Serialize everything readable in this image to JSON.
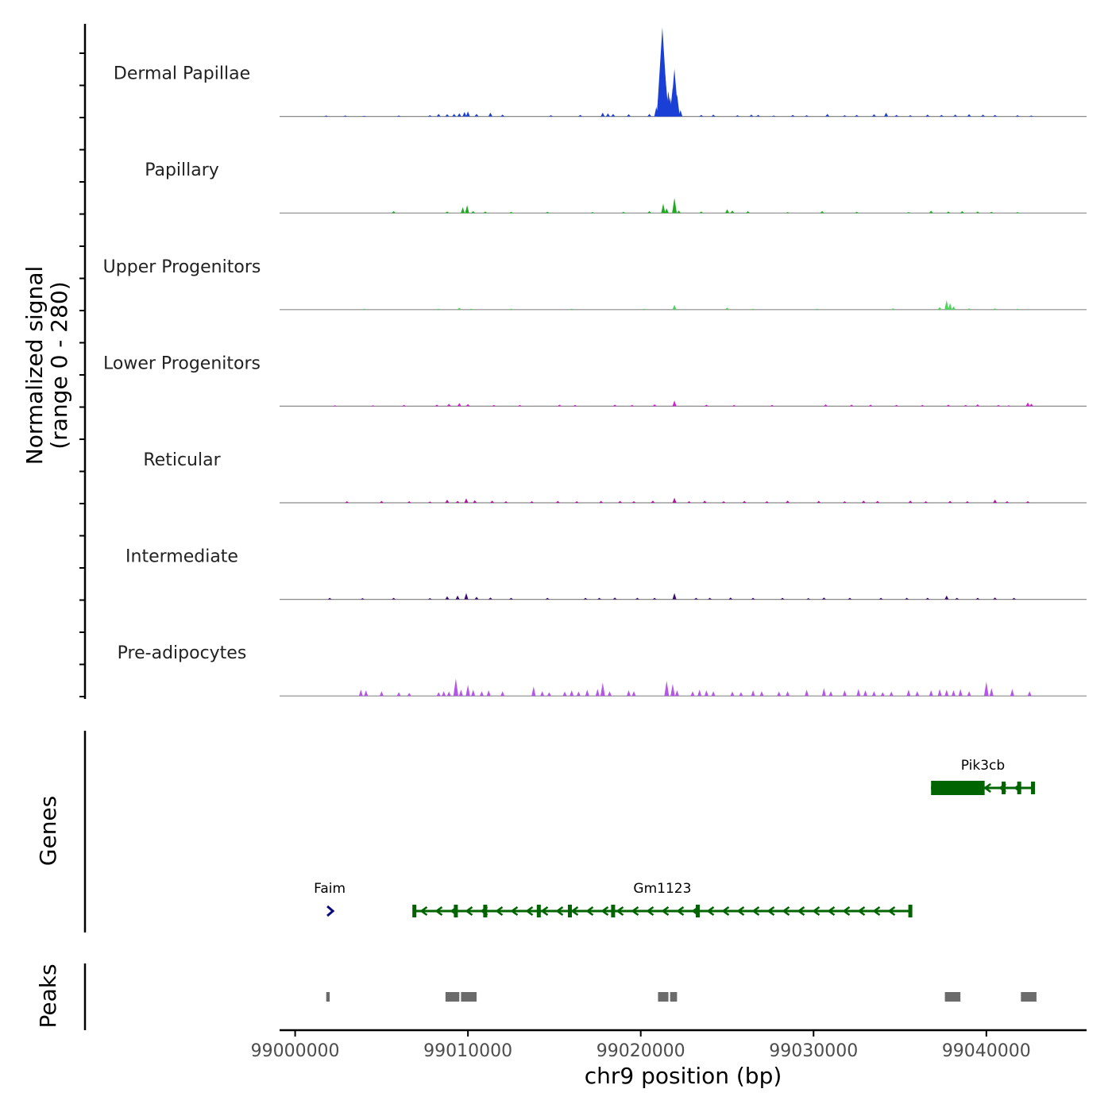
{
  "chart_data": {
    "type": "area",
    "title": "",
    "xlabel": "chr9 position (bp)",
    "ylabel": "Normalized signal\n(range 0 - 280)",
    "ylim": [
      0,
      280
    ],
    "xlim": [
      98999100,
      99045800
    ],
    "x_ticks": [
      99000000,
      99010000,
      99020000,
      99030000,
      99040000
    ],
    "x_tick_labels": [
      "99000000",
      "99010000",
      "99020000",
      "99030000",
      "99040000"
    ],
    "colors": {
      "Dermal Papillae": "#1a3fd6",
      "Papillary": "#1faa1f",
      "Upper Progenitors": "#4cd65a",
      "Lower Progenitors": "#d41fd4",
      "Reticular": "#b0139d",
      "Intermediate": "#3d0a70",
      "Pre-adipocytes": "#b656e8",
      "genes": "#006400",
      "gene_faim": "#0a0a80",
      "peaks": "#6b6b6b"
    },
    "series": [
      {
        "name": "Dermal Papillae",
        "peaks": [
          [
            99001800,
            3
          ],
          [
            99002900,
            3
          ],
          [
            99004000,
            2
          ],
          [
            99006000,
            3
          ],
          [
            99007800,
            4
          ],
          [
            99008300,
            8
          ],
          [
            99008800,
            7
          ],
          [
            99009200,
            8
          ],
          [
            99009500,
            10
          ],
          [
            99009800,
            14
          ],
          [
            99010000,
            16
          ],
          [
            99010500,
            8
          ],
          [
            99011300,
            12
          ],
          [
            99012000,
            6
          ],
          [
            99014800,
            4
          ],
          [
            99016500,
            5
          ],
          [
            99017800,
            12
          ],
          [
            99018100,
            10
          ],
          [
            99018400,
            8
          ],
          [
            99019300,
            7
          ],
          [
            99020500,
            8
          ],
          [
            99020900,
            30
          ],
          [
            99021050,
            60
          ],
          [
            99021150,
            150
          ],
          [
            99021250,
            280
          ],
          [
            99021400,
            140
          ],
          [
            99021600,
            80
          ],
          [
            99021700,
            60
          ],
          [
            99021850,
            90
          ],
          [
            99021950,
            150
          ],
          [
            99022100,
            70
          ],
          [
            99022300,
            20
          ],
          [
            99023500,
            5
          ],
          [
            99024200,
            6
          ],
          [
            99025600,
            4
          ],
          [
            99026400,
            6
          ],
          [
            99026800,
            5
          ],
          [
            99027700,
            3
          ],
          [
            99028800,
            5
          ],
          [
            99029600,
            4
          ],
          [
            99030800,
            8
          ],
          [
            99031800,
            4
          ],
          [
            99032500,
            5
          ],
          [
            99033500,
            7
          ],
          [
            99034200,
            12
          ],
          [
            99034800,
            5
          ],
          [
            99035600,
            4
          ],
          [
            99036600,
            6
          ],
          [
            99037400,
            5
          ],
          [
            99038200,
            6
          ],
          [
            99039000,
            7
          ],
          [
            99039800,
            6
          ],
          [
            99040500,
            5
          ],
          [
            99041800,
            4
          ],
          [
            99042600,
            3
          ]
        ]
      },
      {
        "name": "Papillary",
        "peaks": [
          [
            99005700,
            6
          ],
          [
            99008800,
            5
          ],
          [
            99009700,
            18
          ],
          [
            99009950,
            25
          ],
          [
            99010300,
            6
          ],
          [
            99011000,
            5
          ],
          [
            99012500,
            4
          ],
          [
            99014600,
            4
          ],
          [
            99017200,
            3
          ],
          [
            99019000,
            4
          ],
          [
            99020500,
            6
          ],
          [
            99021300,
            30
          ],
          [
            99021500,
            15
          ],
          [
            99021950,
            48
          ],
          [
            99022200,
            8
          ],
          [
            99023500,
            5
          ],
          [
            99025000,
            12
          ],
          [
            99025300,
            8
          ],
          [
            99026200,
            6
          ],
          [
            99028500,
            3
          ],
          [
            99030500,
            6
          ],
          [
            99032500,
            4
          ],
          [
            99035500,
            3
          ],
          [
            99036800,
            7
          ],
          [
            99037800,
            5
          ],
          [
            99038600,
            6
          ],
          [
            99039500,
            5
          ],
          [
            99040300,
            4
          ],
          [
            99041800,
            3
          ]
        ]
      },
      {
        "name": "Upper Progenitors",
        "peaks": [
          [
            99004000,
            3
          ],
          [
            99008300,
            3
          ],
          [
            99009500,
            6
          ],
          [
            99010200,
            3
          ],
          [
            99012500,
            3
          ],
          [
            99016000,
            3
          ],
          [
            99020200,
            3
          ],
          [
            99021950,
            15
          ],
          [
            99025000,
            6
          ],
          [
            99026500,
            3
          ],
          [
            99030200,
            3
          ],
          [
            99034600,
            4
          ],
          [
            99037300,
            8
          ],
          [
            99037700,
            30
          ],
          [
            99037900,
            20
          ],
          [
            99038100,
            10
          ],
          [
            99039000,
            4
          ],
          [
            99040500,
            4
          ],
          [
            99041800,
            3
          ]
        ]
      },
      {
        "name": "Lower Progenitors",
        "peaks": [
          [
            99002300,
            3
          ],
          [
            99004500,
            3
          ],
          [
            99006300,
            4
          ],
          [
            99008200,
            5
          ],
          [
            99008900,
            8
          ],
          [
            99009500,
            10
          ],
          [
            99010000,
            7
          ],
          [
            99011500,
            4
          ],
          [
            99013000,
            4
          ],
          [
            99015300,
            5
          ],
          [
            99016200,
            4
          ],
          [
            99018500,
            5
          ],
          [
            99019500,
            4
          ],
          [
            99020800,
            6
          ],
          [
            99021950,
            18
          ],
          [
            99023800,
            5
          ],
          [
            99025400,
            4
          ],
          [
            99027600,
            4
          ],
          [
            99030700,
            6
          ],
          [
            99032200,
            5
          ],
          [
            99033300,
            5
          ],
          [
            99034800,
            4
          ],
          [
            99036300,
            4
          ],
          [
            99037800,
            5
          ],
          [
            99038800,
            4
          ],
          [
            99039500,
            6
          ],
          [
            99040700,
            4
          ],
          [
            99041300,
            3
          ],
          [
            99042400,
            12
          ],
          [
            99042600,
            8
          ]
        ]
      },
      {
        "name": "Reticular",
        "peaks": [
          [
            99003000,
            5
          ],
          [
            99005000,
            6
          ],
          [
            99006600,
            5
          ],
          [
            99007800,
            4
          ],
          [
            99008800,
            10
          ],
          [
            99009400,
            6
          ],
          [
            99009900,
            14
          ],
          [
            99010400,
            8
          ],
          [
            99011400,
            7
          ],
          [
            99012200,
            5
          ],
          [
            99013700,
            5
          ],
          [
            99015200,
            6
          ],
          [
            99016300,
            5
          ],
          [
            99017700,
            6
          ],
          [
            99018800,
            6
          ],
          [
            99019600,
            5
          ],
          [
            99020700,
            7
          ],
          [
            99021950,
            16
          ],
          [
            99022800,
            5
          ],
          [
            99023700,
            7
          ],
          [
            99024800,
            5
          ],
          [
            99026000,
            6
          ],
          [
            99027300,
            5
          ],
          [
            99028500,
            7
          ],
          [
            99030300,
            6
          ],
          [
            99031800,
            5
          ],
          [
            99032900,
            7
          ],
          [
            99033700,
            6
          ],
          [
            99035600,
            7
          ],
          [
            99036500,
            5
          ],
          [
            99037900,
            6
          ],
          [
            99038900,
            5
          ],
          [
            99040500,
            10
          ],
          [
            99041200,
            5
          ],
          [
            99042400,
            5
          ]
        ]
      },
      {
        "name": "Intermediate",
        "peaks": [
          [
            99002000,
            5
          ],
          [
            99003900,
            4
          ],
          [
            99005700,
            5
          ],
          [
            99007800,
            4
          ],
          [
            99008800,
            10
          ],
          [
            99009400,
            12
          ],
          [
            99009900,
            20
          ],
          [
            99010500,
            8
          ],
          [
            99011300,
            6
          ],
          [
            99012500,
            5
          ],
          [
            99014600,
            5
          ],
          [
            99016800,
            5
          ],
          [
            99017600,
            5
          ],
          [
            99018500,
            6
          ],
          [
            99019800,
            5
          ],
          [
            99020800,
            5
          ],
          [
            99021950,
            20
          ],
          [
            99023200,
            5
          ],
          [
            99024000,
            5
          ],
          [
            99025200,
            6
          ],
          [
            99026500,
            5
          ],
          [
            99028200,
            5
          ],
          [
            99029700,
            4
          ],
          [
            99030600,
            6
          ],
          [
            99032100,
            5
          ],
          [
            99033900,
            5
          ],
          [
            99035400,
            5
          ],
          [
            99036600,
            5
          ],
          [
            99037700,
            12
          ],
          [
            99038300,
            5
          ],
          [
            99039500,
            5
          ],
          [
            99040500,
            6
          ],
          [
            99041600,
            5
          ]
        ]
      },
      {
        "name": "Pre-adipocytes",
        "peaks": [
          [
            99003800,
            20
          ],
          [
            99004100,
            18
          ],
          [
            99005000,
            15
          ],
          [
            99006000,
            12
          ],
          [
            99006600,
            10
          ],
          [
            99008300,
            12
          ],
          [
            99008600,
            15
          ],
          [
            99008900,
            14
          ],
          [
            99009300,
            55
          ],
          [
            99009600,
            20
          ],
          [
            99010000,
            35
          ],
          [
            99010300,
            20
          ],
          [
            99010800,
            15
          ],
          [
            99011200,
            18
          ],
          [
            99012000,
            15
          ],
          [
            99013800,
            30
          ],
          [
            99014300,
            15
          ],
          [
            99014700,
            12
          ],
          [
            99015600,
            14
          ],
          [
            99016000,
            18
          ],
          [
            99016400,
            14
          ],
          [
            99016900,
            20
          ],
          [
            99017500,
            22
          ],
          [
            99017800,
            42
          ],
          [
            99018200,
            15
          ],
          [
            99019300,
            18
          ],
          [
            99019600,
            15
          ],
          [
            99021500,
            48
          ],
          [
            99021850,
            38
          ],
          [
            99022100,
            18
          ],
          [
            99023000,
            15
          ],
          [
            99023400,
            20
          ],
          [
            99023800,
            18
          ],
          [
            99024200,
            15
          ],
          [
            99025300,
            14
          ],
          [
            99025800,
            12
          ],
          [
            99026500,
            18
          ],
          [
            99027000,
            15
          ],
          [
            99028000,
            14
          ],
          [
            99028500,
            15
          ],
          [
            99029600,
            20
          ],
          [
            99030600,
            25
          ],
          [
            99031000,
            15
          ],
          [
            99031800,
            18
          ],
          [
            99032600,
            22
          ],
          [
            99033000,
            18
          ],
          [
            99033500,
            15
          ],
          [
            99034000,
            12
          ],
          [
            99034500,
            14
          ],
          [
            99035500,
            20
          ],
          [
            99036000,
            15
          ],
          [
            99036800,
            18
          ],
          [
            99037300,
            22
          ],
          [
            99037700,
            20
          ],
          [
            99038100,
            18
          ],
          [
            99038500,
            22
          ],
          [
            99039000,
            15
          ],
          [
            99040000,
            45
          ],
          [
            99040300,
            25
          ],
          [
            99041500,
            22
          ],
          [
            99042500,
            15
          ]
        ]
      }
    ],
    "genes": [
      {
        "name": "Faim",
        "start": 99001900,
        "end": 99002100,
        "strand": "+",
        "row": 2,
        "exons": []
      },
      {
        "name": "Gm1123",
        "start": 99006800,
        "end": 99035700,
        "strand": "-",
        "row": 2,
        "exons": [
          99006900,
          99009300,
          99011000,
          99014100,
          99015900,
          99018400,
          99023300,
          99035600
        ]
      },
      {
        "name": "Pik3cb",
        "start": 99036800,
        "end": 99042800,
        "strand": "-",
        "row": 1,
        "exons": [
          99041000,
          99041900,
          99042700
        ],
        "thick": [
          [
            99036800,
            99039900
          ]
        ]
      }
    ],
    "peaks": [
      [
        99001800,
        99002000
      ],
      [
        99008700,
        99009500
      ],
      [
        99009600,
        99010500
      ],
      [
        99021000,
        99021600
      ],
      [
        99021700,
        99022100
      ],
      [
        99037600,
        99038500
      ],
      [
        99042000,
        99042900
      ]
    ],
    "panel_labels": {
      "genes": "Genes",
      "peaks": "Peaks"
    }
  }
}
